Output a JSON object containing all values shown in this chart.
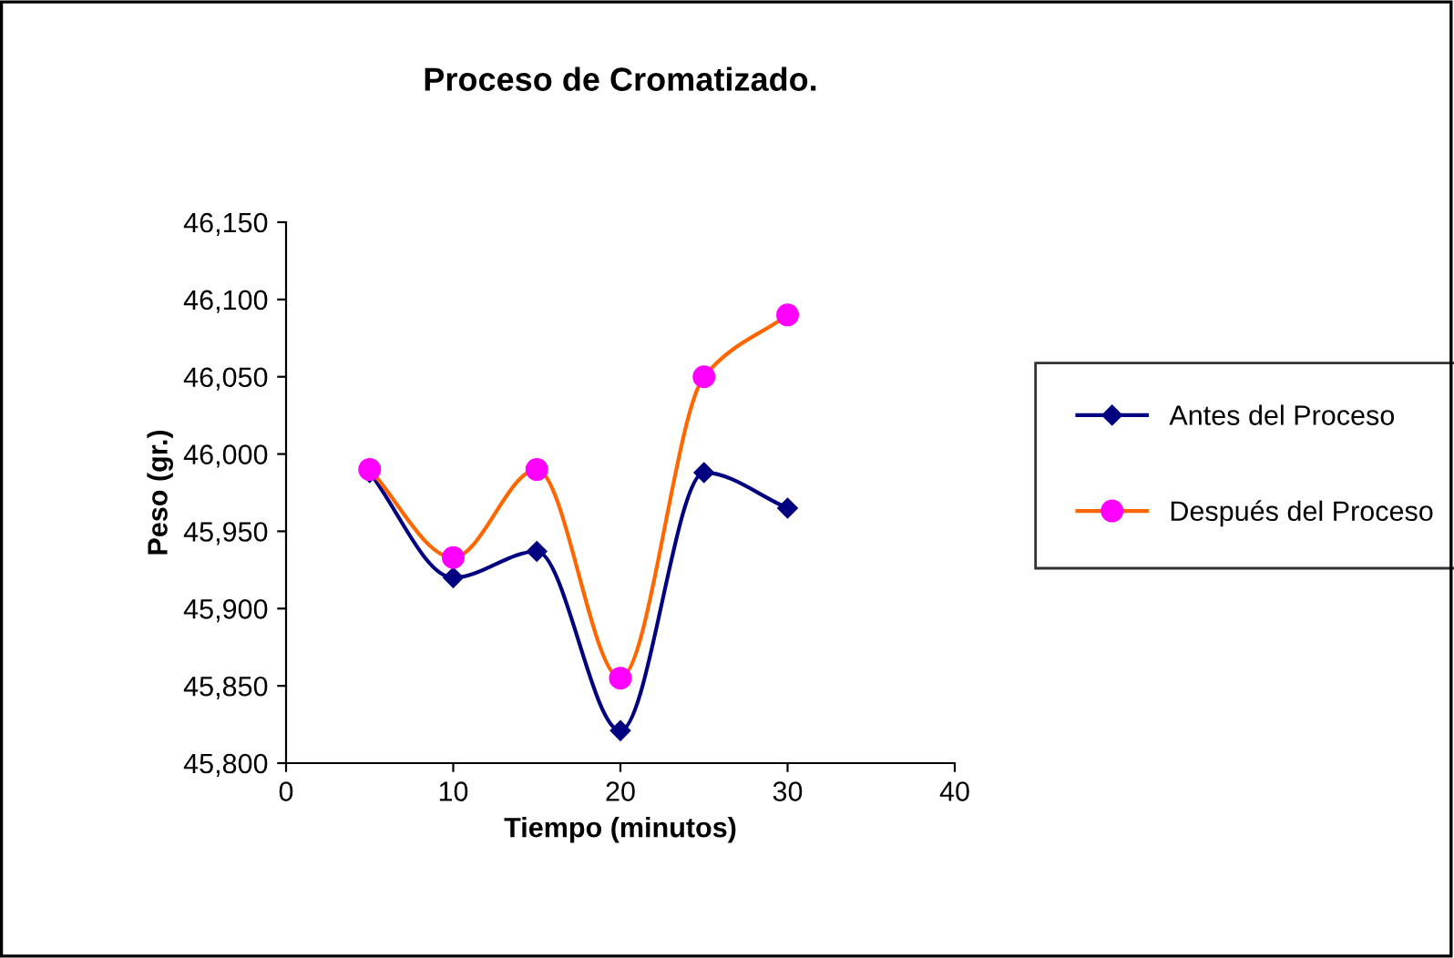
{
  "chart_data": {
    "type": "line",
    "title": "Proceso de Cromatizado.",
    "xlabel": "Tiempo (minutos)",
    "ylabel": "Peso (gr.)",
    "x": [
      5,
      10,
      15,
      20,
      25,
      30
    ],
    "series": [
      {
        "name": "Antes del Proceso",
        "color": "#000080",
        "marker": "diamond",
        "values": [
          45988,
          45920,
          45937,
          45821,
          45988,
          45965
        ]
      },
      {
        "name": "Después del Proceso",
        "color": "#ff6600",
        "colors": [
          "#ff00ff",
          "#ff00ff",
          "#ff00ff",
          "#ff00ff",
          "#ff00ff",
          "#ff00ff"
        ],
        "marker": "circle",
        "values": [
          45990,
          45933,
          45990,
          45855,
          46050,
          46090
        ]
      }
    ],
    "xlim": [
      0,
      40
    ],
    "xticks": [
      0,
      10,
      20,
      30,
      40
    ],
    "ylim": [
      45800,
      46150
    ],
    "yticks": [
      {
        "value": 45800,
        "label": "45,800"
      },
      {
        "value": 45850,
        "label": "45,850"
      },
      {
        "value": 45900,
        "label": "45,900"
      },
      {
        "value": 45950,
        "label": "45,950"
      },
      {
        "value": 46000,
        "label": "46,000"
      },
      {
        "value": 46050,
        "label": "46,050"
      },
      {
        "value": 46100,
        "label": "46,100"
      },
      {
        "value": 46150,
        "label": "46,150"
      }
    ],
    "grid": false,
    "legend": "right",
    "line_style": "solid"
  }
}
